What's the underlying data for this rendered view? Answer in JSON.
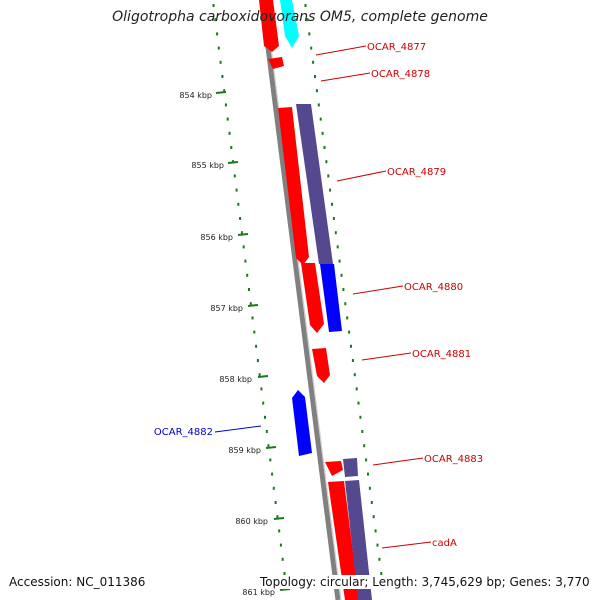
{
  "title": "Oligotropha carboxidovorans OM5, complete genome",
  "accession": "Accession: NC_011386",
  "topology": "Topology: circular; Length: 3,745,629 bp; Genes: 3,770",
  "colors": {
    "forward_cds": "#ff0000",
    "forward_feature": "#00ffff",
    "reverse_cds": "#0000ff",
    "reverse_feature": "#55488f",
    "backbone": "#808080",
    "ticks": "#1a7a1a",
    "forward_label": "#cc0000",
    "reverse_label": "#0000cc"
  },
  "scale_ticks": [
    "854 kbp",
    "855 kbp",
    "856 kbp",
    "857 kbp",
    "858 kbp",
    "859 kbp",
    "860 kbp",
    "861 kbp"
  ],
  "gene_labels": [
    {
      "text": "OCAR_4877",
      "strand": "forward"
    },
    {
      "text": "OCAR_4878",
      "strand": "forward"
    },
    {
      "text": "OCAR_4879",
      "strand": "forward"
    },
    {
      "text": "OCAR_4880",
      "strand": "forward"
    },
    {
      "text": "OCAR_4881",
      "strand": "forward"
    },
    {
      "text": "OCAR_4882",
      "strand": "reverse"
    },
    {
      "text": "OCAR_4883",
      "strand": "forward"
    },
    {
      "text": "cadA",
      "strand": "forward"
    }
  ]
}
